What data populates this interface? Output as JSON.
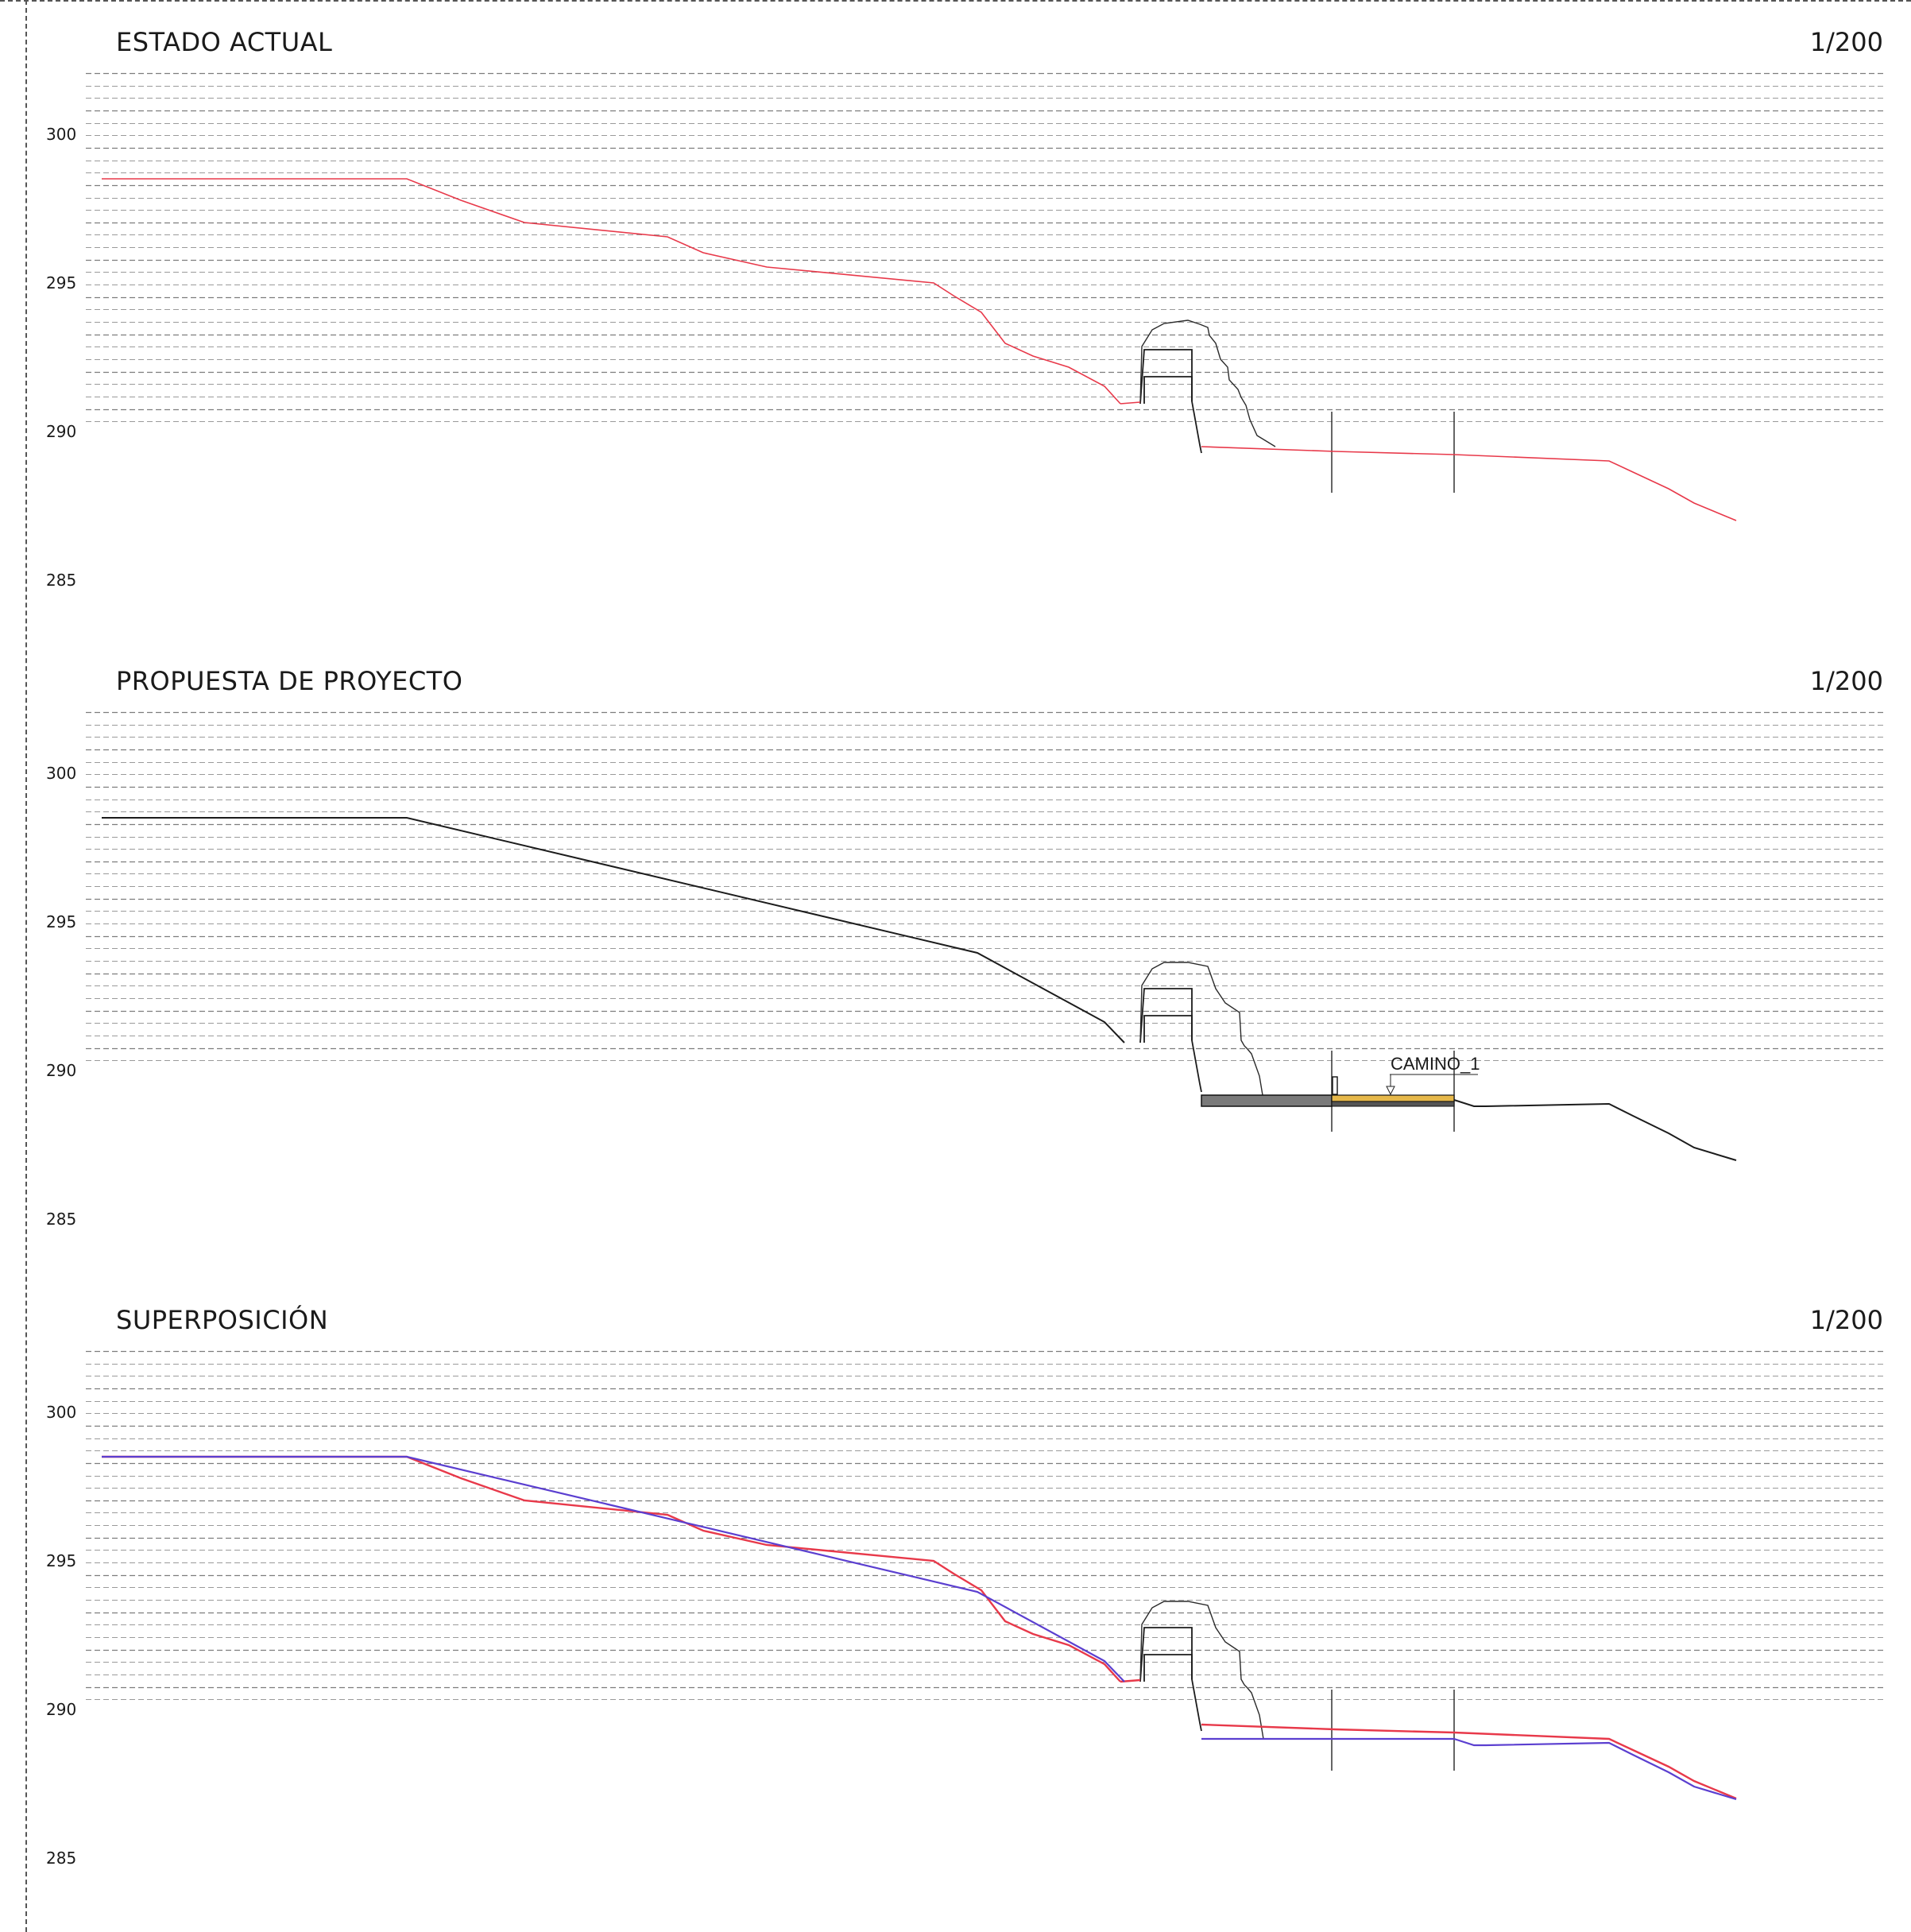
{
  "scale_label": "1/200",
  "colors": {
    "existing": "#e8394a",
    "proposal": "#1c1c1c",
    "overlay_proposal": "#5b3fd0",
    "road_fill": "#e6b84a",
    "slab_fill": "#7a7a7a",
    "grid": "#9a9a9a"
  },
  "axis": {
    "ticks": [
      300,
      295,
      290,
      285
    ]
  },
  "panels": [
    {
      "id": "estado-actual",
      "title": "ESTADO ACTUAL",
      "scale": "1/200",
      "show_existing": true,
      "show_proposal": false,
      "show_road": false
    },
    {
      "id": "propuesta",
      "title": "PROPUESTA DE PROYECTO",
      "scale": "1/200",
      "show_existing": false,
      "show_proposal": true,
      "show_road": true,
      "annotation": "CAMINO_1"
    },
    {
      "id": "superposicion",
      "title": "SUPERPOSICIÓN",
      "scale": "1/200",
      "show_existing": true,
      "show_proposal": true,
      "show_road": false
    }
  ]
}
